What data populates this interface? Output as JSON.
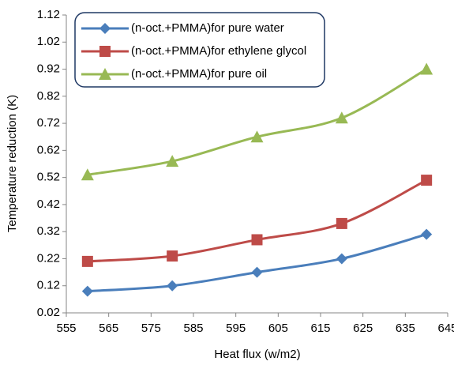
{
  "chart_data": {
    "type": "line",
    "x_label": "Heat flux (w/m2)",
    "y_label": "Temperature reduction (K)",
    "x": [
      560,
      580,
      600,
      620,
      640
    ],
    "series": [
      {
        "name": "(n-oct.+PMMA)for pure water",
        "color": "#4a7ebb",
        "marker": "diamond",
        "values": [
          0.1,
          0.12,
          0.17,
          0.22,
          0.31
        ]
      },
      {
        "name": "(n-oct.+PMMA)for ethylene glycol",
        "color": "#be4b48",
        "marker": "square",
        "values": [
          0.21,
          0.23,
          0.29,
          0.35,
          0.51
        ]
      },
      {
        "name": "(n-oct.+PMMA)for pure oil",
        "color": "#98b954",
        "marker": "triangle",
        "values": [
          0.53,
          0.58,
          0.67,
          0.74,
          0.92
        ]
      }
    ],
    "xlim": [
      555,
      645
    ],
    "xticks": [
      555,
      565,
      575,
      585,
      595,
      605,
      615,
      625,
      635,
      645
    ],
    "ylim": [
      0.02,
      1.12
    ],
    "yticks": [
      0.02,
      0.12,
      0.22,
      0.32,
      0.42,
      0.52,
      0.62,
      0.72,
      0.82,
      0.92,
      1.02,
      1.12
    ],
    "grid": false,
    "legend": "top-left"
  }
}
